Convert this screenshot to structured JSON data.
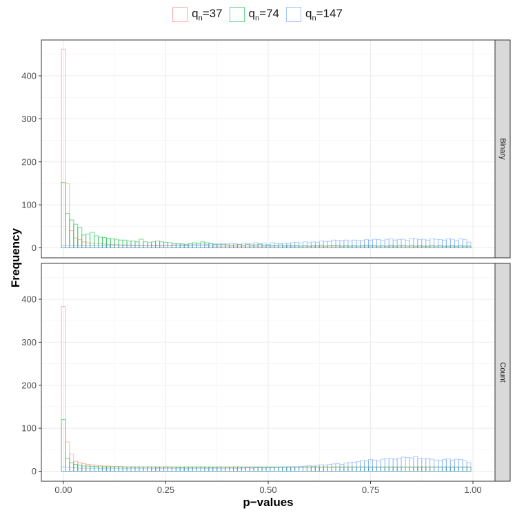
{
  "legend": [
    {
      "prefix": "q",
      "sub": "n",
      "suffix": "=37",
      "color": "#F8766D"
    },
    {
      "prefix": "q",
      "sub": "n",
      "suffix": "=74",
      "color": "#00BA38"
    },
    {
      "prefix": "q",
      "sub": "n",
      "suffix": "=147",
      "color": "#619CFF"
    }
  ],
  "axis": {
    "xlabel": "p−values",
    "ylabel": "Frequency"
  },
  "chart_data": {
    "type": "histogram",
    "xlabel": "p−values",
    "ylabel": "Frequency",
    "xlim": [
      0,
      1
    ],
    "ylim": [
      0,
      470
    ],
    "bin_width": 0.01,
    "x_ticks": [
      "0.00",
      "0.25",
      "0.50",
      "0.75",
      "1.00"
    ],
    "x_tick_values": [
      0,
      0.25,
      0.5,
      0.75,
      1
    ],
    "y_ticks": [
      0,
      100,
      200,
      300,
      400
    ],
    "series_colors": [
      "#F8766D",
      "#00BA38",
      "#619CFF"
    ],
    "panels": [
      {
        "strip": "Binary",
        "series": [
          {
            "name": "qn=37",
            "values": [
              462,
              150,
              40,
              23,
              19,
              14,
              12,
              11,
              10,
              10,
              9,
              8,
              8,
              8,
              7,
              7,
              7,
              6,
              6,
              6,
              6,
              6,
              6,
              6,
              5,
              5,
              5,
              5,
              5,
              5,
              5,
              5,
              5,
              5,
              5,
              5,
              5,
              4,
              4,
              4,
              4,
              4,
              4,
              4,
              4,
              4,
              4,
              4,
              4,
              4,
              4,
              4,
              4,
              4,
              4,
              4,
              4,
              4,
              4,
              4,
              4,
              4,
              4,
              4,
              4,
              4,
              4,
              4,
              4,
              4,
              4,
              4,
              4,
              4,
              4,
              4,
              4,
              4,
              4,
              4,
              4,
              4,
              4,
              4,
              4,
              4,
              4,
              4,
              4,
              4,
              4,
              4,
              4,
              4,
              4,
              4,
              4,
              4,
              4,
              4
            ]
          },
          {
            "name": "qn=74",
            "values": [
              152,
              80,
              65,
              55,
              48,
              30,
              32,
              36,
              28,
              25,
              24,
              22,
              21,
              20,
              18,
              18,
              16,
              16,
              14,
              20,
              14,
              12,
              14,
              16,
              14,
              13,
              12,
              10,
              10,
              9,
              8,
              10,
              12,
              10,
              14,
              12,
              10,
              8,
              9,
              8,
              7,
              6,
              7,
              8,
              6,
              8,
              6,
              7,
              8,
              6,
              5,
              6,
              5,
              7,
              5,
              6,
              5,
              5,
              4,
              5,
              4,
              5,
              5,
              6,
              4,
              5,
              5,
              6,
              4,
              5,
              4,
              5,
              4,
              5,
              6,
              5,
              5,
              4,
              5,
              4,
              5,
              4,
              5,
              5,
              4,
              5,
              4,
              5,
              4,
              4,
              5,
              4,
              5,
              4,
              4,
              5,
              4,
              5,
              4,
              4
            ]
          },
          {
            "name": "qn=147",
            "values": [
              5,
              5,
              5,
              5,
              5,
              5,
              5,
              5,
              5,
              5,
              5,
              5,
              5,
              5,
              5,
              5,
              5,
              5,
              5,
              5,
              5,
              5,
              5,
              5,
              6,
              6,
              6,
              7,
              7,
              7,
              6,
              7,
              8,
              7,
              9,
              8,
              10,
              9,
              8,
              10,
              9,
              10,
              10,
              8,
              11,
              10,
              9,
              12,
              10,
              11,
              8,
              12,
              10,
              10,
              11,
              10,
              12,
              13,
              11,
              14,
              12,
              14,
              13,
              16,
              15,
              15,
              18,
              17,
              17,
              18,
              16,
              18,
              17,
              17,
              19,
              18,
              20,
              19,
              17,
              20,
              21,
              18,
              19,
              20,
              17,
              22,
              21,
              19,
              20,
              18,
              21,
              20,
              19,
              18,
              21,
              20,
              17,
              21,
              19,
              13
            ]
          }
        ]
      },
      {
        "strip": "Count",
        "series": [
          {
            "name": "qn=37",
            "values": [
              383,
              68,
              40,
              23,
              20,
              18,
              16,
              15,
              14,
              13,
              12,
              12,
              11,
              11,
              11,
              10,
              10,
              10,
              10,
              10,
              10,
              10,
              10,
              9,
              9,
              9,
              9,
              9,
              9,
              9,
              9,
              9,
              9,
              9,
              9,
              9,
              9,
              9,
              9,
              9,
              9,
              9,
              9,
              9,
              9,
              9,
              9,
              9,
              9,
              9,
              9,
              9,
              9,
              9,
              9,
              9,
              9,
              9,
              9,
              9,
              9,
              9,
              9,
              9,
              9,
              9,
              9,
              9,
              9,
              9,
              9,
              9,
              9,
              9,
              9,
              9,
              9,
              9,
              9,
              9,
              9,
              9,
              9,
              9,
              9,
              9,
              9,
              9,
              9,
              9,
              9,
              9,
              9,
              9,
              9,
              9,
              9,
              9,
              9,
              9
            ]
          },
          {
            "name": "qn=74",
            "values": [
              120,
              30,
              20,
              16,
              14,
              12,
              12,
              11,
              11,
              10,
              10,
              10,
              10,
              10,
              10,
              10,
              10,
              10,
              10,
              10,
              10,
              10,
              10,
              10,
              10,
              10,
              10,
              10,
              10,
              10,
              10,
              10,
              10,
              10,
              10,
              10,
              10,
              10,
              10,
              10,
              10,
              10,
              10,
              10,
              10,
              10,
              10,
              10,
              10,
              10,
              10,
              10,
              10,
              10,
              10,
              10,
              10,
              10,
              10,
              10,
              10,
              10,
              10,
              10,
              10,
              10,
              10,
              10,
              10,
              10,
              10,
              10,
              10,
              10,
              10,
              10,
              10,
              10,
              10,
              10,
              10,
              10,
              10,
              10,
              10,
              10,
              10,
              10,
              10,
              10,
              10,
              10,
              10,
              10,
              10,
              10,
              10,
              10,
              10,
              10
            ]
          },
          {
            "name": "qn=147",
            "values": [
              10,
              9,
              8,
              8,
              7,
              7,
              7,
              7,
              7,
              6,
              6,
              6,
              6,
              6,
              6,
              6,
              6,
              7,
              7,
              6,
              6,
              7,
              6,
              7,
              6,
              7,
              7,
              6,
              7,
              7,
              6,
              7,
              6,
              7,
              7,
              6,
              7,
              7,
              7,
              6,
              7,
              7,
              6,
              7,
              7,
              8,
              7,
              8,
              8,
              7,
              8,
              8,
              9,
              9,
              9,
              10,
              10,
              10,
              11,
              12,
              13,
              12,
              14,
              15,
              14,
              16,
              17,
              18,
              16,
              19,
              20,
              21,
              22,
              25,
              24,
              27,
              26,
              24,
              28,
              30,
              29,
              28,
              30,
              33,
              32,
              31,
              34,
              30,
              29,
              30,
              28,
              26,
              25,
              27,
              29,
              26,
              28,
              27,
              25,
              20
            ]
          }
        ]
      }
    ]
  }
}
